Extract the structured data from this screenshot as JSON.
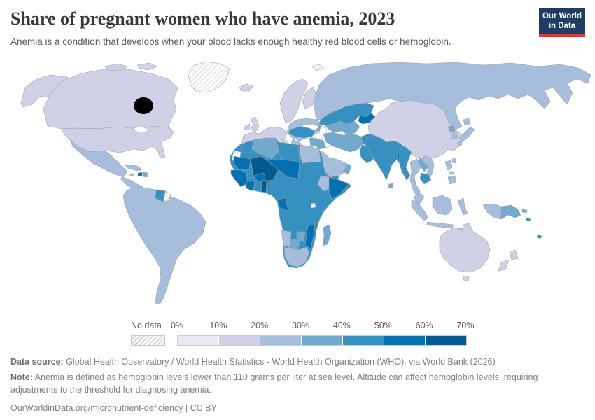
{
  "header": {
    "title": "Share of pregnant women who have anemia, 2023",
    "subtitle": "Anemia is a condition that develops when your blood lacks enough healthy red blood cells or hemoglobin.",
    "logo_line1": "Our World",
    "logo_line2": "in Data",
    "logo_bg_color": "#1d3d63",
    "logo_stripe_color": "#d93d3d"
  },
  "legend": {
    "no_data_label": "No data",
    "tick_labels": [
      "0%",
      "10%",
      "20%",
      "30%",
      "40%",
      "50%",
      "60%",
      "70%"
    ],
    "bin_colors": [
      "#ece7f2",
      "#d0d1e6",
      "#a6bddb",
      "#74a9cf",
      "#3690c0",
      "#0570b0",
      "#045a8d"
    ]
  },
  "chart_data": {
    "type": "choropleth",
    "title": "Share of pregnant women who have anemia",
    "year": 2023,
    "unit": "share of pregnant women (%)",
    "legend_position": "bottom",
    "bins": [
      {
        "range": "0-10%",
        "color": "#ece7f2"
      },
      {
        "range": "10-20%",
        "color": "#d0d1e6"
      },
      {
        "range": "20-30%",
        "color": "#a6bddb"
      },
      {
        "range": "30-40%",
        "color": "#74a9cf"
      },
      {
        "range": "40-50%",
        "color": "#3690c0"
      },
      {
        "range": "50-60%",
        "color": "#0570b0"
      },
      {
        "range": "60-70%",
        "color": "#045a8d"
      }
    ],
    "no_data_style": "grey diagonal hatching",
    "regions": [
      {
        "id": "greenland",
        "name": "Greenland",
        "bin": "no_data",
        "range": "No data"
      },
      {
        "id": "canada",
        "name": "Canada",
        "bin": 1,
        "range": "10-20%"
      },
      {
        "id": "alaska",
        "name": "Alaska (United States)",
        "bin": 1,
        "range": "10-20%"
      },
      {
        "id": "usa",
        "name": "United States",
        "bin": 1,
        "range": "10-20%"
      },
      {
        "id": "mexico",
        "name": "Mexico",
        "bin": 2,
        "range": "20-30%"
      },
      {
        "id": "central-america",
        "name": "Central America",
        "bin": 2,
        "range": "20-30%"
      },
      {
        "id": "cuba",
        "name": "Cuba",
        "bin": 2,
        "range": "20-30%"
      },
      {
        "id": "jamaica",
        "name": "Jamaica",
        "bin": 2,
        "range": "20-30%"
      },
      {
        "id": "haiti",
        "name": "Haiti",
        "bin": 5,
        "range": "50-60%"
      },
      {
        "id": "dominican-republic",
        "name": "Dominican Republic",
        "bin": 3,
        "range": "30-40%"
      },
      {
        "id": "south-america",
        "name": "South America (Brazil, Andes, Southern Cone)",
        "bin": 2,
        "range": "20-30%"
      },
      {
        "id": "guyana",
        "name": "Guyana",
        "bin": 4,
        "range": "40-50%"
      },
      {
        "id": "suriname",
        "name": "Suriname / French Guiana",
        "bin": "no_data",
        "range": "No data"
      },
      {
        "id": "iceland",
        "name": "Iceland",
        "bin": 1,
        "range": "10-20%"
      },
      {
        "id": "uk-ireland",
        "name": "United Kingdom & Ireland",
        "bin": 1,
        "range": "10-20%"
      },
      {
        "id": "scandinavia",
        "name": "Scandinavia & Finland",
        "bin": 1,
        "range": "10-20%"
      },
      {
        "id": "western-europe",
        "name": "Western & Central Europe",
        "bin": 1,
        "range": "10-20%"
      },
      {
        "id": "eastern-europe",
        "name": "Eastern Europe & Balkans",
        "bin": 2,
        "range": "20-30%"
      },
      {
        "id": "russia",
        "name": "Russia",
        "bin": 2,
        "range": "20-30%"
      },
      {
        "id": "kazakhstan",
        "name": "Kazakhstan",
        "bin": 4,
        "range": "40-50%"
      },
      {
        "id": "uzbek-turkmen",
        "name": "Uzbekistan & Turkmenistan",
        "bin": 3,
        "range": "30-40%"
      },
      {
        "id": "kyrgyz-tajik",
        "name": "Kyrgyzstan & Tajikistan",
        "bin": 5,
        "range": "50-60%"
      },
      {
        "id": "caucasus",
        "name": "Caucasus",
        "bin": 3,
        "range": "30-40%"
      },
      {
        "id": "turkey",
        "name": "Turkey",
        "bin": 4,
        "range": "40-50%"
      },
      {
        "id": "levant",
        "name": "Levant",
        "bin": 3,
        "range": "30-40%"
      },
      {
        "id": "iraq",
        "name": "Iraq",
        "bin": 3,
        "range": "30-40%"
      },
      {
        "id": "iran",
        "name": "Iran",
        "bin": 3,
        "range": "30-40%"
      },
      {
        "id": "afghanistan",
        "name": "Afghanistan",
        "bin": 4,
        "range": "40-50%"
      },
      {
        "id": "pakistan",
        "name": "Pakistan",
        "bin": 4,
        "range": "40-50%"
      },
      {
        "id": "saudi-arabia",
        "name": "Saudi Arabia",
        "bin": 2,
        "range": "20-30%"
      },
      {
        "id": "yemen",
        "name": "Yemen",
        "bin": 4,
        "range": "40-50%"
      },
      {
        "id": "oman",
        "name": "Oman",
        "bin": 3,
        "range": "30-40%"
      },
      {
        "id": "india",
        "name": "India",
        "bin": 4,
        "range": "40-50%"
      },
      {
        "id": "bangladesh",
        "name": "Bangladesh",
        "bin": 5,
        "range": "50-60%"
      },
      {
        "id": "sri-lanka",
        "name": "Sri Lanka",
        "bin": 3,
        "range": "30-40%"
      },
      {
        "id": "china-mongolia",
        "name": "China & Mongolia",
        "bin": 1,
        "range": "10-20%"
      },
      {
        "id": "north-korea",
        "name": "North Korea",
        "bin": 3,
        "range": "30-40%"
      },
      {
        "id": "south-korea",
        "name": "South Korea",
        "bin": 2,
        "range": "20-30%"
      },
      {
        "id": "japan",
        "name": "Japan",
        "bin": 2,
        "range": "20-30%"
      },
      {
        "id": "taiwan",
        "name": "Taiwan",
        "bin": 2,
        "range": "20-30%"
      },
      {
        "id": "myanmar",
        "name": "Myanmar",
        "bin": 4,
        "range": "40-50%"
      },
      {
        "id": "thailand",
        "name": "Thailand",
        "bin": 2,
        "range": "20-30%"
      },
      {
        "id": "laos",
        "name": "Laos",
        "bin": 3,
        "range": "30-40%"
      },
      {
        "id": "vietnam",
        "name": "Vietnam",
        "bin": 2,
        "range": "20-30%"
      },
      {
        "id": "cambodia",
        "name": "Cambodia",
        "bin": 4,
        "range": "40-50%"
      },
      {
        "id": "malaysia",
        "name": "Malaysia",
        "bin": 2,
        "range": "20-30%"
      },
      {
        "id": "indonesia",
        "name": "Indonesia",
        "bin": 2,
        "range": "20-30%"
      },
      {
        "id": "philippines",
        "name": "Philippines",
        "bin": 2,
        "range": "20-30%"
      },
      {
        "id": "papua-new-guinea",
        "name": "Papua New Guinea",
        "bin": 3,
        "range": "30-40%"
      },
      {
        "id": "solomon-islands",
        "name": "Solomon Islands",
        "bin": 4,
        "range": "40-50%"
      },
      {
        "id": "fiji",
        "name": "Fiji",
        "bin": 4,
        "range": "40-50%"
      },
      {
        "id": "australia",
        "name": "Australia",
        "bin": 1,
        "range": "10-20%"
      },
      {
        "id": "new-zealand",
        "name": "New Zealand",
        "bin": 1,
        "range": "10-20%"
      },
      {
        "id": "africa-base",
        "name": "Sub-Saharan Africa (Nigeria, Ghana, Sudan, DR Congo, East Africa, Angola, Zambia)",
        "bin": 4,
        "range": "40-50%"
      },
      {
        "id": "morocco",
        "name": "Morocco",
        "bin": 4,
        "range": "40-50%"
      },
      {
        "id": "algeria-tunisia",
        "name": "Algeria & Tunisia",
        "bin": 3,
        "range": "30-40%"
      },
      {
        "id": "libya",
        "name": "Libya",
        "bin": 4,
        "range": "40-50%"
      },
      {
        "id": "egypt",
        "name": "Egypt",
        "bin": 2,
        "range": "20-30%"
      },
      {
        "id": "western-sahara",
        "name": "Western Sahara",
        "bin": "no_data",
        "range": "No data"
      },
      {
        "id": "mauritania",
        "name": "Mauritania",
        "bin": 5,
        "range": "50-60%"
      },
      {
        "id": "mali",
        "name": "Mali",
        "bin": 6,
        "range": "60-70%"
      },
      {
        "id": "niger-chad",
        "name": "Niger & Chad",
        "bin": 5,
        "range": "50-60%"
      },
      {
        "id": "senegal-guinea",
        "name": "Senegal & Guinea",
        "bin": 5,
        "range": "50-60%"
      },
      {
        "id": "burkina-faso",
        "name": "Burkina Faso",
        "bin": 5,
        "range": "50-60%"
      },
      {
        "id": "ivory-coast",
        "name": "Côte d'Ivoire",
        "bin": 5,
        "range": "50-60%"
      },
      {
        "id": "benin-togo",
        "name": "Benin & Togo",
        "bin": 6,
        "range": "60-70%"
      },
      {
        "id": "gabon-congo",
        "name": "Gabon & Congo",
        "bin": 5,
        "range": "50-60%"
      },
      {
        "id": "somalia",
        "name": "Somalia",
        "bin": 5,
        "range": "50-60%"
      },
      {
        "id": "ethiopia",
        "name": "Ethiopia",
        "bin": 2,
        "range": "20-30%"
      },
      {
        "id": "mozambique",
        "name": "Mozambique",
        "bin": 5,
        "range": "50-60%"
      },
      {
        "id": "zimbabwe",
        "name": "Zimbabwe",
        "bin": 3,
        "range": "30-40%"
      },
      {
        "id": "botswana",
        "name": "Botswana",
        "bin": 3,
        "range": "30-40%"
      },
      {
        "id": "namibia",
        "name": "Namibia",
        "bin": 2,
        "range": "20-30%"
      },
      {
        "id": "south-africa",
        "name": "South Africa",
        "bin": 2,
        "range": "20-30%"
      },
      {
        "id": "madagascar",
        "name": "Madagascar",
        "bin": 3,
        "range": "30-40%"
      },
      {
        "id": "svalbard",
        "name": "Svalbard",
        "bin": "no_data",
        "range": "No data"
      }
    ]
  },
  "footer": {
    "datasource_label": "Data source:",
    "datasource_text": " Global Health Observatory / World Health Statistics - World Health Organization (WHO), via World Bank (2026)",
    "note_label": "Note:",
    "note_text": " Anemia is defined as hemoglobin levels lower than 110 grams per liter at sea level. Altitude can affect hemoglobin levels, requiring adjustments to the threshold for diagnosing anemia.",
    "url": "OurWorldinData.org/micronutrient-deficiency | CC BY"
  }
}
